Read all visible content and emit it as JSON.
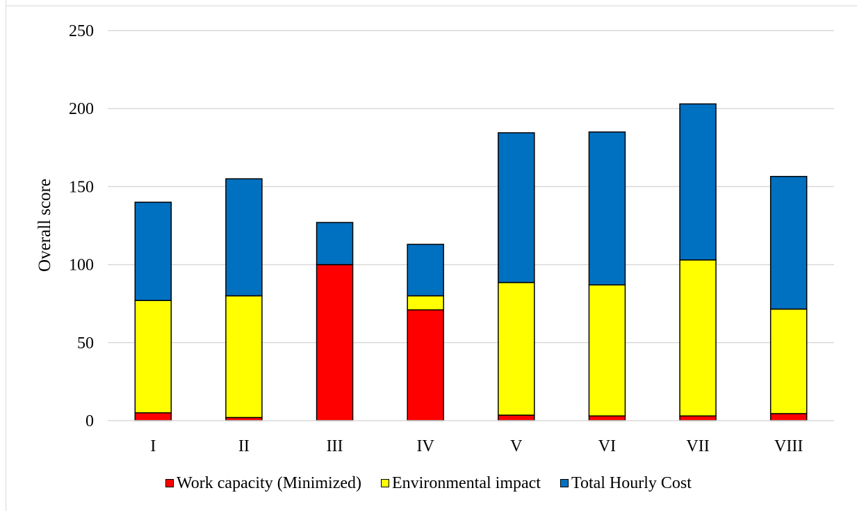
{
  "chart_data": {
    "type": "bar",
    "stacked": true,
    "title": "",
    "xlabel": "",
    "ylabel": "Overall score",
    "ylim": [
      0,
      250
    ],
    "yticks": [
      0,
      50,
      100,
      150,
      200,
      250
    ],
    "grid": true,
    "legend_position": "bottom",
    "categories": [
      "I",
      "II",
      "III",
      "IV",
      "V",
      "VI",
      "VII",
      "VIII"
    ],
    "series": [
      {
        "name": "Work capacity (Minimized)",
        "color": "#ff0000",
        "values": [
          5,
          2,
          100,
          71,
          3.5,
          3,
          3,
          4.5
        ]
      },
      {
        "name": "Environmental impact",
        "color": "#ffff00",
        "values": [
          72,
          78,
          0,
          9,
          85,
          84,
          100,
          67
        ]
      },
      {
        "name": "Total Hourly Cost",
        "color": "#0070c0",
        "values": [
          63,
          75,
          27,
          33,
          96,
          98,
          100,
          85
        ]
      }
    ]
  }
}
